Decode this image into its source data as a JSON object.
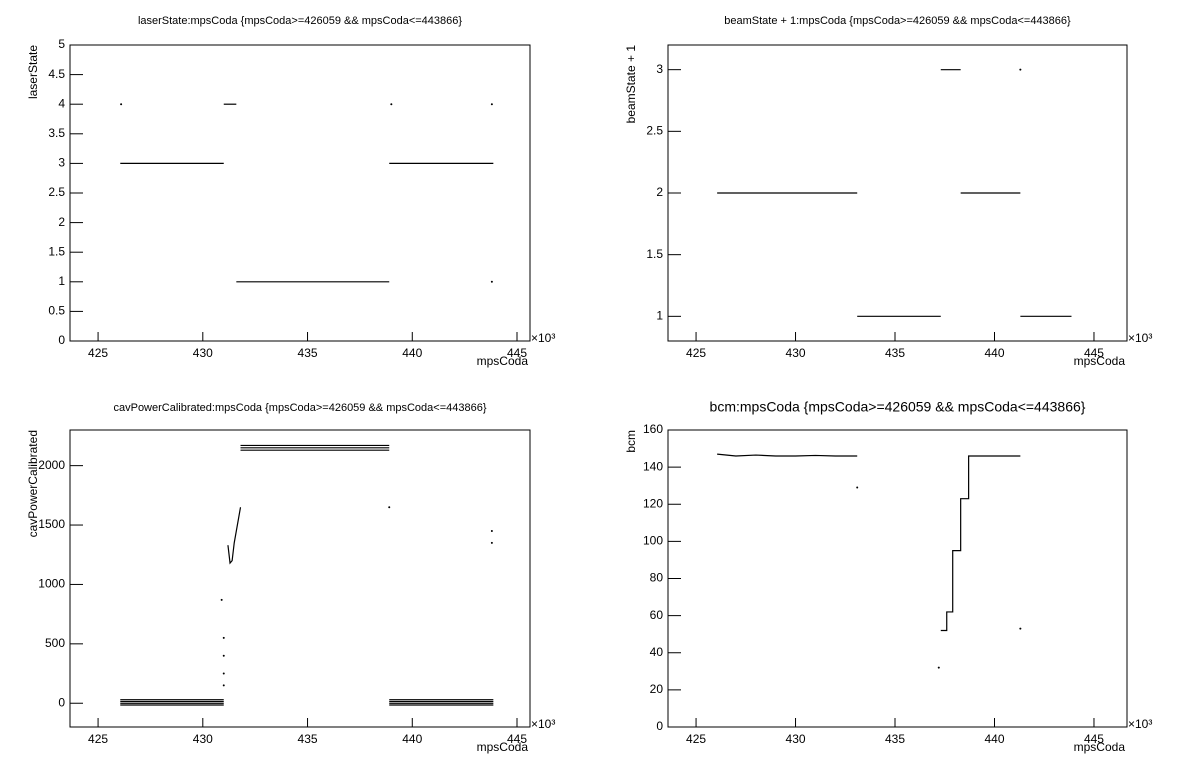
{
  "chart_data": [
    {
      "type": "line",
      "title": "laserState:mpsCoda {mpsCoda>=426059 && mpsCoda<=443866}",
      "x_label": "mpsCoda",
      "y_label": "laserState",
      "x_multiplier": "×10³",
      "xlim": [
        423.66,
        445.62
      ],
      "xticks": [
        425,
        430,
        435,
        440,
        445
      ],
      "ylim": [
        0,
        5
      ],
      "yticks": [
        0,
        0.5,
        1,
        1.5,
        2,
        2.5,
        3,
        3.5,
        4,
        4.5,
        5
      ],
      "series": [
        {
          "color": "#000000",
          "x": [
            426.06,
            431.0,
            null,
            431.0,
            431.6,
            null,
            431.6,
            438.9,
            null,
            438.9,
            443.87,
            null,
            426.1,
            null,
            439.0,
            null,
            443.8,
            null,
            443.8
          ],
          "y": [
            3,
            3,
            null,
            4,
            4,
            null,
            1,
            1,
            null,
            3,
            3,
            null,
            4,
            null,
            4,
            null,
            4,
            null,
            1
          ]
        }
      ]
    },
    {
      "type": "line",
      "title": "beamState + 1:mpsCoda {mpsCoda>=426059 && mpsCoda<=443866}",
      "x_label": "mpsCoda",
      "y_label": "beamState + 1",
      "x_multiplier": "×10³",
      "xlim": [
        423.59,
        446.66
      ],
      "xticks": [
        425,
        430,
        435,
        440,
        445
      ],
      "ylim": [
        0.8,
        3.2
      ],
      "yticks": [
        1,
        1.5,
        2,
        2.5,
        3
      ],
      "series": [
        {
          "color": "#000000",
          "x": [
            426.06,
            433.1,
            null,
            433.1,
            437.3,
            null,
            437.3,
            438.3,
            null,
            438.3,
            441.3,
            null,
            441.3,
            443.87,
            null,
            441.3
          ],
          "y": [
            2,
            2,
            null,
            1,
            1,
            null,
            3,
            3,
            null,
            2,
            2,
            null,
            1,
            1,
            null,
            3
          ]
        }
      ]
    },
    {
      "type": "line",
      "title": "cavPowerCalibrated:mpsCoda {mpsCoda>=426059 && mpsCoda<=443866}",
      "x_label": "mpsCoda",
      "y_label": "cavPowerCalibrated",
      "x_multiplier": "×10³",
      "xlim": [
        423.66,
        445.62
      ],
      "xticks": [
        425,
        430,
        435,
        440,
        445
      ],
      "ylim": [
        -200,
        2300
      ],
      "yticks": [
        0,
        500,
        1000,
        1500,
        2000
      ],
      "series": [
        {
          "color": "#000000",
          "x": [
            426.06,
            431.0,
            null,
            426.06,
            431.0,
            null,
            426.06,
            431.0,
            null,
            426.06,
            431.0,
            null,
            430.9,
            null,
            431.0,
            null,
            431.0,
            null,
            431.0,
            null,
            431.0,
            null,
            431.2,
            431.3,
            431.4,
            431.5,
            431.6,
            431.7,
            431.8,
            null,
            431.8,
            438.9,
            null,
            431.8,
            438.9,
            null,
            431.8,
            438.9,
            null,
            438.9,
            443.87,
            null,
            438.9,
            443.87,
            null,
            438.9,
            443.87,
            null,
            438.9,
            443.87,
            null,
            438.9,
            null,
            443.8,
            null,
            443.8
          ],
          "y": [
            -15,
            -15,
            null,
            0,
            0,
            null,
            15,
            15,
            null,
            30,
            30,
            null,
            870,
            null,
            550,
            null,
            400,
            null,
            250,
            null,
            150,
            null,
            1330,
            1180,
            1200,
            1350,
            1450,
            1550,
            1650,
            null,
            2130,
            2130,
            null,
            2150,
            2150,
            null,
            2170,
            2170,
            null,
            -15,
            -15,
            null,
            0,
            0,
            null,
            15,
            15,
            null,
            30,
            30,
            null,
            1650,
            null,
            1450,
            null,
            1350
          ]
        }
      ]
    },
    {
      "type": "line",
      "title": "bcm:mpsCoda {mpsCoda>=426059 && mpsCoda<=443866}",
      "x_label": "mpsCoda",
      "y_label": "bcm",
      "x_multiplier": "×10³",
      "xlim": [
        423.59,
        446.66
      ],
      "xticks": [
        425,
        430,
        435,
        440,
        445
      ],
      "ylim": [
        0,
        160
      ],
      "yticks": [
        0,
        20,
        40,
        60,
        80,
        100,
        120,
        140,
        160
      ],
      "series": [
        {
          "color": "#000000",
          "x": [
            426.06,
            427.0,
            428.0,
            429.0,
            430.0,
            431.0,
            432.0,
            433.1,
            null,
            433.1,
            null,
            437.3,
            437.6,
            437.6,
            437.9,
            437.9,
            438.3,
            438.3,
            438.7,
            438.7,
            441.3,
            null,
            437.2,
            null,
            441.3
          ],
          "y": [
            147,
            146,
            146.5,
            146,
            146,
            146.3,
            146,
            146,
            null,
            129,
            null,
            52,
            52,
            62,
            62,
            95,
            95,
            123,
            123,
            146,
            146,
            null,
            32,
            null,
            53
          ]
        }
      ]
    }
  ]
}
